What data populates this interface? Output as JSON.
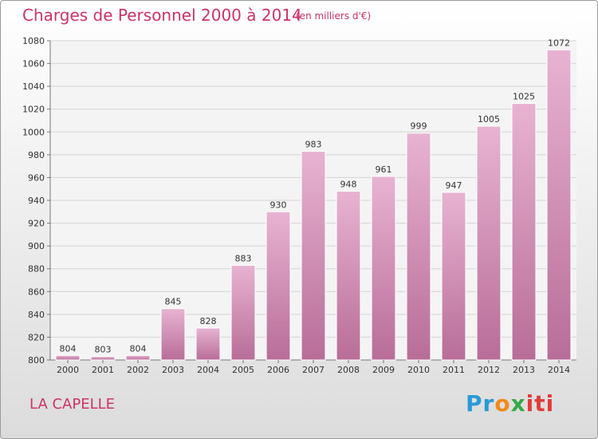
{
  "header": {
    "title": "Charges de Personnel 2000 à 2014",
    "subtitle": "(en milliers d'€)"
  },
  "footer": {
    "place": "LA CAPELLE",
    "logo": {
      "parts": [
        "Pr",
        "o",
        "x",
        "iti"
      ]
    }
  },
  "colors": {
    "accent": "#cc3366",
    "bar_light": "#e8b3d2",
    "bar_dark": "#b86d98"
  },
  "chart_data": {
    "type": "bar",
    "title": "Charges de Personnel 2000 à 2014",
    "subtitle": "(en milliers d'€)",
    "categories": [
      "2000",
      "2001",
      "2002",
      "2003",
      "2004",
      "2005",
      "2006",
      "2007",
      "2008",
      "2009",
      "2010",
      "2011",
      "2012",
      "2013",
      "2014"
    ],
    "values": [
      804,
      803,
      804,
      845,
      828,
      883,
      930,
      983,
      948,
      961,
      999,
      947,
      1005,
      1025,
      1072
    ],
    "ylim": [
      800,
      1080
    ],
    "yticks": [
      800,
      820,
      840,
      860,
      880,
      900,
      920,
      940,
      960,
      980,
      1000,
      1020,
      1040,
      1060,
      1080
    ],
    "grid": true,
    "xlabel": "",
    "ylabel": ""
  }
}
